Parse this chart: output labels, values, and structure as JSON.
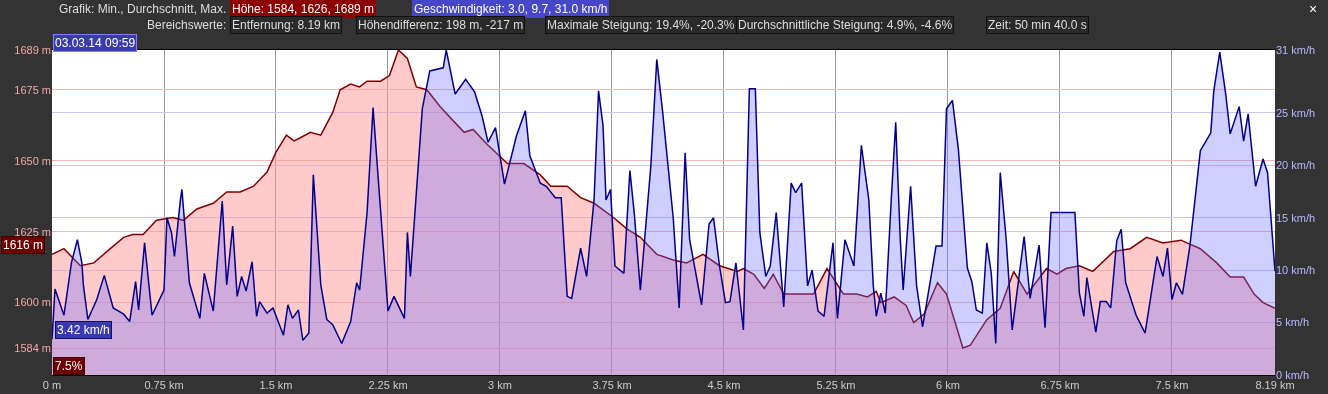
{
  "chart_data": {
    "type": "area",
    "annotations": [
      "Grafik: Min., Durchschnitt, Max.",
      "Höhe: 1584, 1626, 1689 m",
      "Geschwindigkeit: 3.0, 9.7, 31.0 km/h",
      "Bereichswerte:",
      "Entfernung: 8.19 km",
      "Höhendifferenz: 198 m, -217 m",
      "Maximale Steigung: 19.4%, -20.3%",
      "Durchschnittliche Steigung: 4.9%, -4.6%",
      "Zeit: 50 min 40.0 s",
      "03.03.14 09:59",
      "1616 m",
      "3.42 km/h",
      "7.5%",
      "×"
    ],
    "xlim": [
      0,
      8.19
    ],
    "xticks": [
      {
        "value": 0,
        "label": "0 m"
      },
      {
        "value": 0.75,
        "label": "0.75 km"
      },
      {
        "value": 1.5,
        "label": "1.5 km"
      },
      {
        "value": 2.25,
        "label": "2.25 km"
      },
      {
        "value": 3,
        "label": "3 km"
      },
      {
        "value": 3.75,
        "label": "3.75 km"
      },
      {
        "value": 4.5,
        "label": "4.5 km"
      },
      {
        "value": 5.25,
        "label": "5.25 km"
      },
      {
        "value": 6,
        "label": "6 km"
      },
      {
        "value": 6.75,
        "label": "6.75 km"
      },
      {
        "value": 7.5,
        "label": "7.5 km"
      },
      {
        "value": 8.19,
        "label": "8.19 km"
      }
    ],
    "ylim": [
      1574.5,
      1689
    ],
    "yticks": [
      {
        "value": 1584,
        "label": "1584 m"
      },
      {
        "value": 1600,
        "label": "1600 m"
      },
      {
        "value": 1625,
        "label": "1625 m"
      },
      {
        "value": 1650,
        "label": "1650 m"
      },
      {
        "value": 1675,
        "label": "1675 m"
      },
      {
        "value": 1689,
        "label": "1689 m"
      }
    ],
    "y2lim": [
      0,
      31
    ],
    "y2ticks": [
      {
        "value": 0,
        "label": "0 km/h"
      },
      {
        "value": 5,
        "label": "5 km/h"
      },
      {
        "value": 10,
        "label": "10 km/h"
      },
      {
        "value": 15,
        "label": "15 km/h"
      },
      {
        "value": 20,
        "label": "20 km/h"
      },
      {
        "value": 25,
        "label": "25 km/h"
      },
      {
        "value": 31,
        "label": "31 km/h"
      }
    ],
    "grid": true,
    "series": [
      {
        "color": "#800000",
        "x": [
          0,
          0.08,
          0.19,
          0.28,
          0.39,
          0.48,
          0.54,
          0.61,
          0.7,
          0.81,
          0.88,
          0.97,
          1.08,
          1.17,
          1.26,
          1.35,
          1.44,
          1.5,
          1.57,
          1.62,
          1.66,
          1.73,
          1.8,
          1.88,
          1.93,
          2.0,
          2.06,
          2.11,
          2.2,
          2.26,
          2.32,
          2.38,
          2.44,
          2.51,
          2.6,
          2.67,
          2.76,
          2.82,
          2.91,
          3.05,
          3.16,
          3.27,
          3.34,
          3.45,
          3.54,
          3.63,
          3.76,
          3.85,
          3.94,
          4.05,
          4.16,
          4.25,
          4.36,
          4.47,
          4.59,
          4.63,
          4.7,
          4.77,
          4.83,
          4.9,
          5.01,
          5.1,
          5.19,
          5.3,
          5.39,
          5.46,
          5.52,
          5.55,
          5.64,
          5.72,
          5.77,
          5.84,
          5.93,
          5.99,
          6.1,
          6.15,
          6.26,
          6.35,
          6.44,
          6.53,
          6.66,
          6.73,
          6.79,
          6.88,
          6.97,
          7.11,
          7.22,
          7.33,
          7.44,
          7.56,
          7.69,
          7.8,
          7.89,
          7.98,
          8.05,
          8.11,
          8.19
        ],
        "values": [
          1617,
          1619,
          1613,
          1614,
          1619,
          1623,
          1624,
          1624,
          1629,
          1630,
          1629,
          1633,
          1635,
          1639,
          1639,
          1641,
          1646,
          1653,
          1659,
          1657,
          1658,
          1660,
          1659,
          1667,
          1675,
          1677,
          1676,
          1678,
          1678,
          1680,
          1689,
          1686,
          1676,
          1675,
          1669,
          1665,
          1660,
          1661,
          1656,
          1649,
          1649,
          1645,
          1641,
          1641,
          1637,
          1635,
          1630,
          1626,
          1623,
          1617,
          1615,
          1614,
          1617,
          1613,
          1611,
          1612,
          1610,
          1605,
          1610,
          1603,
          1603,
          1603,
          1612,
          1603,
          1603,
          1602,
          1604,
          1600,
          1602,
          1599,
          1593,
          1596,
          1607,
          1603,
          1584,
          1585,
          1594,
          1598,
          1611,
          1603,
          1612,
          1610,
          1612,
          1613,
          1611,
          1618,
          1619,
          1623,
          1621,
          1622,
          1619,
          1614,
          1609,
          1609,
          1603,
          1600,
          1598
        ]
      },
      {
        "color": "#00008b",
        "axis": "y2",
        "x": [
          0,
          0.02,
          0.08,
          0.13,
          0.17,
          0.2,
          0.21,
          0.24,
          0.3,
          0.35,
          0.41,
          0.48,
          0.52,
          0.56,
          0.58,
          0.62,
          0.67,
          0.75,
          0.77,
          0.8,
          0.82,
          0.86,
          0.87,
          0.92,
          0.99,
          1.02,
          1.08,
          1.14,
          1.17,
          1.21,
          1.24,
          1.27,
          1.3,
          1.34,
          1.37,
          1.39,
          1.44,
          1.48,
          1.55,
          1.58,
          1.61,
          1.65,
          1.68,
          1.72,
          1.75,
          1.8,
          1.84,
          1.88,
          1.94,
          2.0,
          2.04,
          2.06,
          2.11,
          2.15,
          2.19,
          2.25,
          2.29,
          2.36,
          2.38,
          2.4,
          2.44,
          2.48,
          2.53,
          2.62,
          2.64,
          2.7,
          2.77,
          2.83,
          2.88,
          2.92,
          2.97,
          3.03,
          3.11,
          3.17,
          3.2,
          3.27,
          3.31,
          3.37,
          3.41,
          3.45,
          3.48,
          3.54,
          3.58,
          3.63,
          3.66,
          3.69,
          3.71,
          3.74,
          3.77,
          3.83,
          3.87,
          3.9,
          3.94,
          4.01,
          4.05,
          4.09,
          4.16,
          4.2,
          4.24,
          4.27,
          4.35,
          4.4,
          4.43,
          4.47,
          4.51,
          4.54,
          4.58,
          4.63,
          4.67,
          4.71,
          4.74,
          4.78,
          4.81,
          4.85,
          4.9,
          4.95,
          4.98,
          5.02,
          5.06,
          5.09,
          5.13,
          5.17,
          5.23,
          5.26,
          5.31,
          5.37,
          5.42,
          5.47,
          5.5,
          5.52,
          5.55,
          5.58,
          5.62,
          5.65,
          5.68,
          5.7,
          5.75,
          5.79,
          5.83,
          5.88,
          5.92,
          5.96,
          5.99,
          6.03,
          6.07,
          6.13,
          6.16,
          6.19,
          6.23,
          6.26,
          6.29,
          6.32,
          6.35,
          6.39,
          6.43,
          6.51,
          6.55,
          6.61,
          6.65,
          6.69,
          6.85,
          6.88,
          6.91,
          6.93,
          6.99,
          7.02,
          7.06,
          7.09,
          7.13,
          7.16,
          7.19,
          7.26,
          7.32,
          7.4,
          7.44,
          7.47,
          7.5,
          7.53,
          7.57,
          7.62,
          7.69,
          7.76,
          7.78,
          7.82,
          7.86,
          7.89,
          7.95,
          7.98,
          8.01,
          8.06,
          8.11,
          8.14,
          8.19
        ],
        "values": [
          3.4,
          8.2,
          5.7,
          10.7,
          12.9,
          10.7,
          8.6,
          5.3,
          7.2,
          9.5,
          6.4,
          5.8,
          5.1,
          8.9,
          6.2,
          12.6,
          5.7,
          8.1,
          15.0,
          13.6,
          11.3,
          16.7,
          17.7,
          8.8,
          5.4,
          9.7,
          6.1,
          16.6,
          8.6,
          14.2,
          7.5,
          9.4,
          8.0,
          10.8,
          5.6,
          7.0,
          5.9,
          6.4,
          3.8,
          6.7,
          5.4,
          6.2,
          3.3,
          4.0,
          19.1,
          8.6,
          5.3,
          4.8,
          3.0,
          5.1,
          8.8,
          8.1,
          15.5,
          25.5,
          17.7,
          6.1,
          7.5,
          5.4,
          13.6,
          9.4,
          17.4,
          25.4,
          29.0,
          29.3,
          31.0,
          26.8,
          28.2,
          27.0,
          24.7,
          22.2,
          23.6,
          18.2,
          22.8,
          25.2,
          20.9,
          18.3,
          18.0,
          16.9,
          16.9,
          7.5,
          7.3,
          12.1,
          9.4,
          16.7,
          27.1,
          23.8,
          16.7,
          17.7,
          10.4,
          9.7,
          19.5,
          15.3,
          8.1,
          19.9,
          30.1,
          25.0,
          15.0,
          6.4,
          21.2,
          12.9,
          6.7,
          14.4,
          15.0,
          10.4,
          6.9,
          7.0,
          10.7,
          4.3,
          27.3,
          27.3,
          13.6,
          9.4,
          10.4,
          15.5,
          6.5,
          18.3,
          17.4,
          18.3,
          8.5,
          10.0,
          6.1,
          5.6,
          12.6,
          5.4,
          12.9,
          10.4,
          21.9,
          16.7,
          8.5,
          5.6,
          7.8,
          5.9,
          16.7,
          24.1,
          13.1,
          8.1,
          18.0,
          8.5,
          4.6,
          8.8,
          12.3,
          12.3,
          25.4,
          26.2,
          21.5,
          10.2,
          8.9,
          6.2,
          5.9,
          12.6,
          9.7,
          3.0,
          19.3,
          12.9,
          4.3,
          13.2,
          7.3,
          12.4,
          4.5,
          15.5,
          15.5,
          7.8,
          5.6,
          9.3,
          4.1,
          7.0,
          7.0,
          6.4,
          12.8,
          13.9,
          8.8,
          5.7,
          4.0,
          11.3,
          9.4,
          12.1,
          7.2,
          8.8,
          7.7,
          12.3,
          21.4,
          23.1,
          27.1,
          30.8,
          26.8,
          23.0,
          25.6,
          22.3,
          24.9,
          18.0,
          20.6,
          19.3,
          9.9
        ]
      }
    ]
  }
}
